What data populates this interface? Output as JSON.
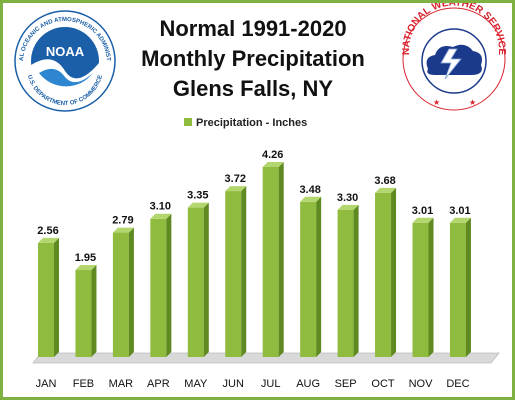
{
  "title_lines": [
    "Normal 1991-2020",
    "Monthly Precipitation",
    "Glens Falls, NY"
  ],
  "logos": {
    "left": {
      "name": "NOAA",
      "ring_text": "NATIONAL OCEANIC AND ATMOSPHERIC ADMINISTRATION",
      "bottom_text": "U.S. DEPARTMENT OF COMMERCE",
      "center_text": "NOAA"
    },
    "right": {
      "name": "National Weather Service",
      "ring_text": "NATIONAL WEATHER SERVICE"
    }
  },
  "colors": {
    "frame": "#7fb142",
    "bar_front": "#8fbb3f",
    "bar_side": "#5f8a22",
    "bar_top": "#b4d66e",
    "floor": "#d9d9d9",
    "noaa_blue": "#1a5fa8",
    "nws_red": "#d9232e"
  },
  "chart_data": {
    "type": "bar",
    "categories": [
      "JAN",
      "FEB",
      "MAR",
      "APR",
      "MAY",
      "JUN",
      "JUL",
      "AUG",
      "SEP",
      "OCT",
      "NOV",
      "DEC"
    ],
    "series": [
      {
        "name": "Precipitation - Inches",
        "values": [
          2.56,
          1.95,
          2.79,
          3.1,
          3.35,
          3.72,
          4.26,
          3.48,
          3.3,
          3.68,
          3.01,
          3.01
        ]
      }
    ],
    "value_labels": [
      "2.56",
      "1.95",
      "2.79",
      "3.10",
      "3.35",
      "3.72",
      "4.26",
      "3.48",
      "3.30",
      "3.68",
      "3.01",
      "3.01"
    ],
    "legend_position": "top-center",
    "grid": false,
    "ylim": [
      0,
      5
    ]
  }
}
